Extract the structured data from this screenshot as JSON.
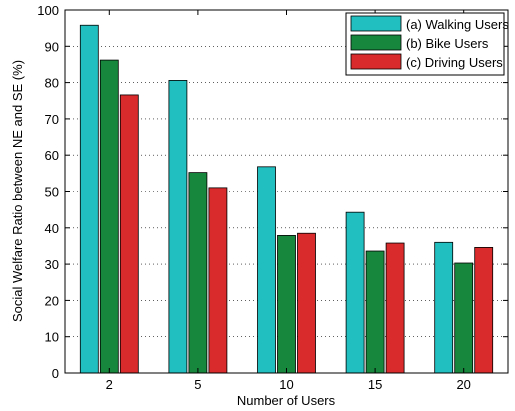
{
  "chart_data": {
    "type": "bar",
    "categories": [
      "2",
      "5",
      "10",
      "15",
      "20"
    ],
    "series": [
      {
        "name": "(a) Walking Users",
        "color": "#21BFBF",
        "values": [
          95.8,
          80.6,
          56.8,
          44.3,
          36.0
        ]
      },
      {
        "name": "(b) Bike Users",
        "color": "#17873D",
        "values": [
          86.2,
          55.2,
          37.9,
          33.6,
          30.3
        ]
      },
      {
        "name": "(c) Driving Users",
        "color": "#D92B2B",
        "values": [
          76.6,
          51.0,
          38.5,
          35.8,
          34.6
        ]
      }
    ],
    "xlabel": "Number of Users",
    "ylabel": "Social Welfare Ratio between NE and SE (%)",
    "ylim": [
      0,
      100
    ],
    "yticks": [
      "0",
      "10",
      "20",
      "30",
      "40",
      "50",
      "60",
      "70",
      "80",
      "90",
      "100"
    ],
    "grid": "horizontal dotted",
    "legend_position": "top-right"
  }
}
